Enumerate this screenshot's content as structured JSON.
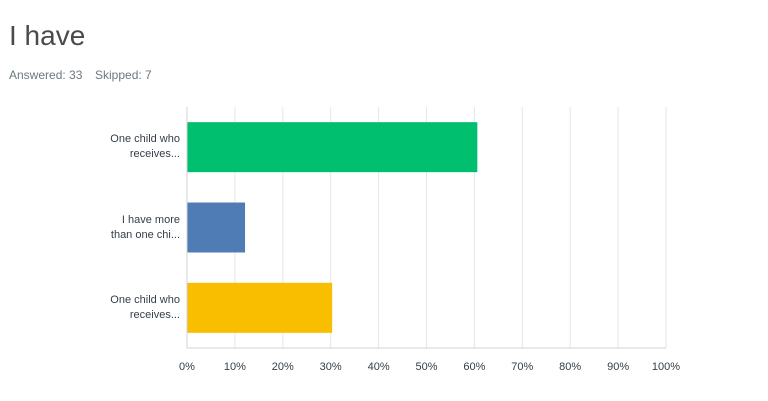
{
  "header": {
    "title": "I have",
    "answered": "Answered: 33",
    "skipped": "Skipped: 7"
  },
  "chart_data": {
    "type": "hbar",
    "categories": [
      "One child who\nreceives...",
      "I have more\nthan one chi...",
      "One child who\nreceives..."
    ],
    "values": [
      60.61,
      12.12,
      30.3
    ],
    "colors": [
      "#00bf6f",
      "#507cb6",
      "#f9be00"
    ],
    "xlim": [
      0,
      100
    ],
    "xticks": [
      {
        "value": 0,
        "label": "0%"
      },
      {
        "value": 10,
        "label": "10%"
      },
      {
        "value": 20,
        "label": "20%"
      },
      {
        "value": 30,
        "label": "30%"
      },
      {
        "value": 40,
        "label": "40%"
      },
      {
        "value": 50,
        "label": "50%"
      },
      {
        "value": 60,
        "label": "60%"
      },
      {
        "value": 70,
        "label": "70%"
      },
      {
        "value": 80,
        "label": "80%"
      },
      {
        "value": 90,
        "label": "90%"
      },
      {
        "value": 100,
        "label": "100%"
      }
    ],
    "grid": true
  }
}
